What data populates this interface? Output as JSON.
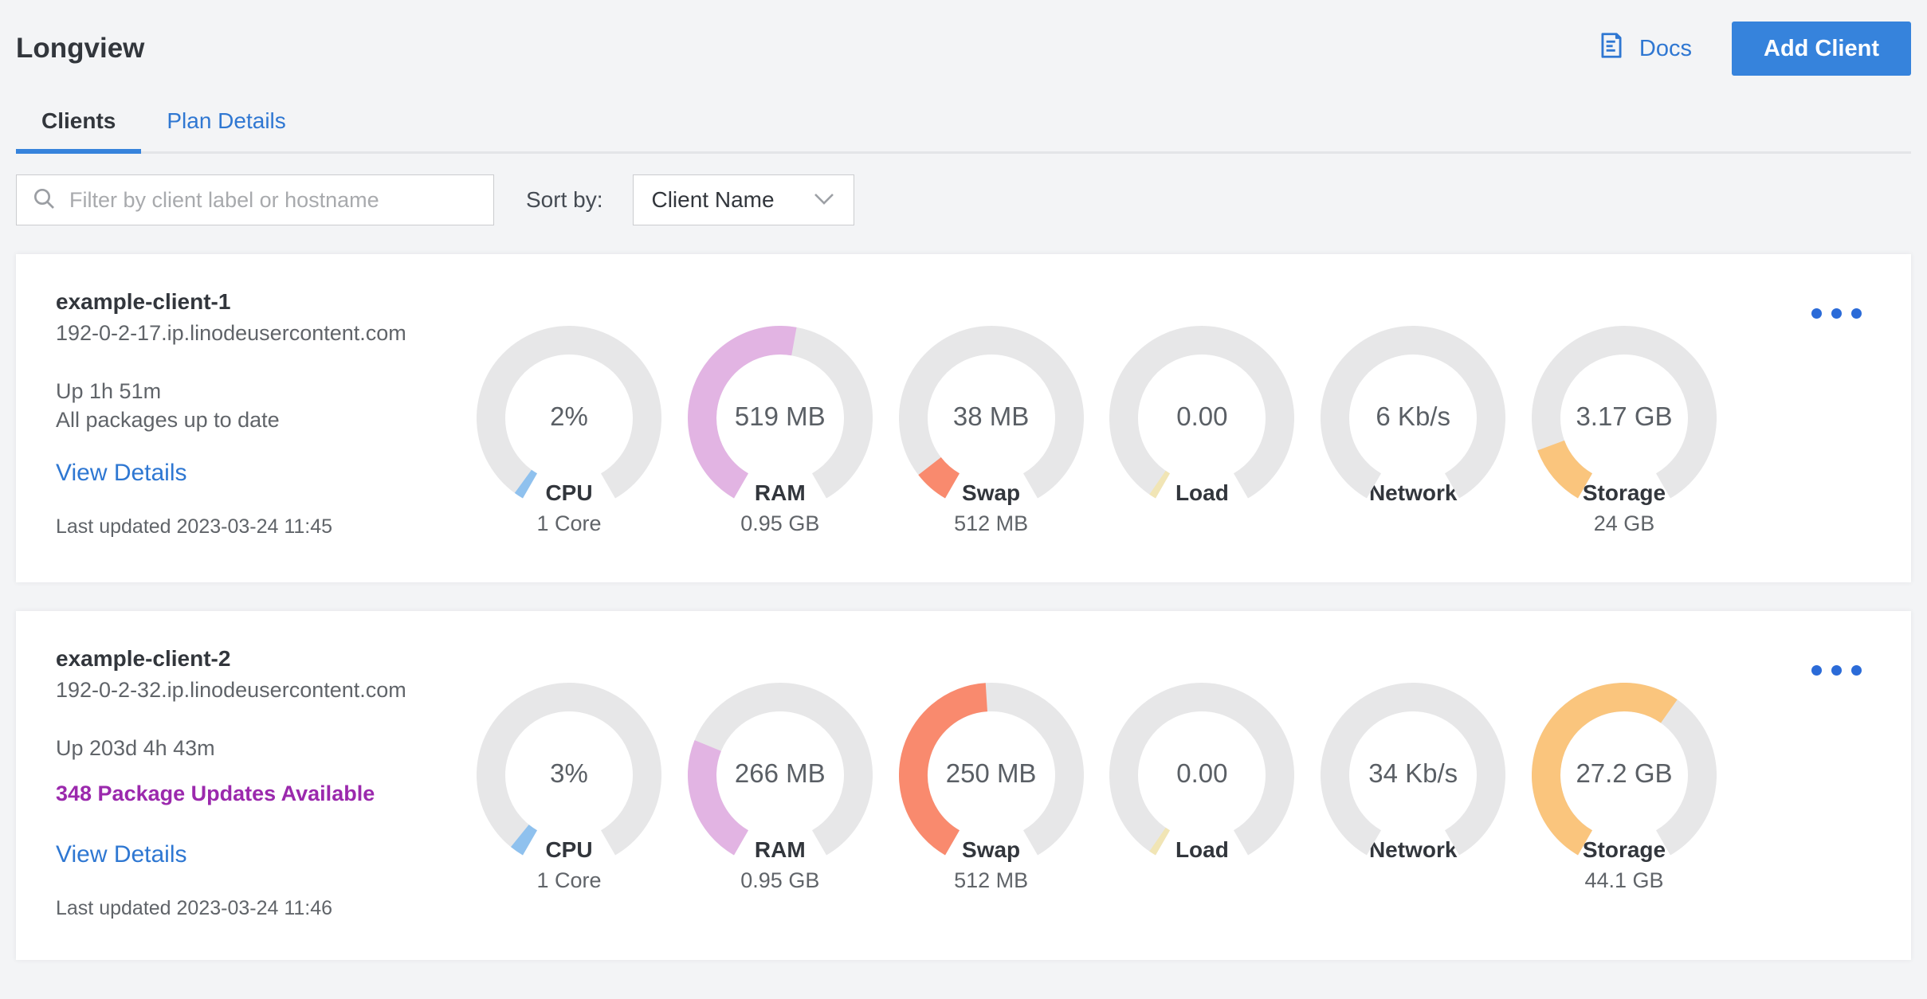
{
  "page": {
    "title": "Longview",
    "background": "#f3f4f6"
  },
  "header": {
    "docs_label": "Docs",
    "add_client_label": "Add Client",
    "accent_color": "#3683dc",
    "link_color": "#2f77d2"
  },
  "tabs": [
    {
      "label": "Clients",
      "active": true
    },
    {
      "label": "Plan Details",
      "active": false
    }
  ],
  "filter": {
    "placeholder": "Filter by client label or hostname",
    "sort_label": "Sort by:",
    "sort_value": "Client Name"
  },
  "icons": {
    "docs": "document-lines-icon",
    "search": "magnifier-icon",
    "sort": "chevron-down-icon",
    "card_menu": "ellipsis-horizontal-icon"
  },
  "gauge_style": {
    "track_color": "#e7e7e8",
    "arc_span_degrees": 300
  },
  "clients": [
    {
      "name": "example-client-1",
      "hostname": "192-0-2-17.ip.linodeusercontent.com",
      "uptime": "Up 1h 51m",
      "packages": "All packages up to date",
      "packages_updates_pending": false,
      "view_details_label": "View Details",
      "last_updated": "Last updated 2023-03-24 11:45",
      "gauges": [
        {
          "metric": "CPU",
          "value": "2%",
          "sub": "1 Core",
          "percent": 2,
          "color": "#8fc1ee"
        },
        {
          "metric": "RAM",
          "value": "519 MB",
          "sub": "0.95 GB",
          "percent": 53.4,
          "color": "#e2b4e3"
        },
        {
          "metric": "Swap",
          "value": "38 MB",
          "sub": "512 MB",
          "percent": 7.4,
          "color": "#f98a6e"
        },
        {
          "metric": "Load",
          "value": "0.00",
          "sub": "",
          "percent": 1.5,
          "color": "#f1e5b5"
        },
        {
          "metric": "Network",
          "value": "6 Kb/s",
          "sub": "",
          "percent": 0,
          "color": "#8fc1ee"
        },
        {
          "metric": "Storage",
          "value": "3.17 GB",
          "sub": "24 GB",
          "percent": 13.2,
          "color": "#fac57d"
        }
      ]
    },
    {
      "name": "example-client-2",
      "hostname": "192-0-2-32.ip.linodeusercontent.com",
      "uptime": "Up 203d 4h 43m",
      "packages": "348 Package Updates Available",
      "packages_updates_pending": true,
      "view_details_label": "View Details",
      "last_updated": "Last updated 2023-03-24 11:46",
      "gauges": [
        {
          "metric": "CPU",
          "value": "3%",
          "sub": "1 Core",
          "percent": 3,
          "color": "#8fc1ee"
        },
        {
          "metric": "RAM",
          "value": "266 MB",
          "sub": "0.95 GB",
          "percent": 27.4,
          "color": "#e2b4e3"
        },
        {
          "metric": "Swap",
          "value": "250 MB",
          "sub": "512 MB",
          "percent": 48.8,
          "color": "#f98a6e"
        },
        {
          "metric": "Load",
          "value": "0.00",
          "sub": "",
          "percent": 1.5,
          "color": "#f1e5b5"
        },
        {
          "metric": "Network",
          "value": "34 Kb/s",
          "sub": "",
          "percent": 0,
          "color": "#8fc1ee"
        },
        {
          "metric": "Storage",
          "value": "27.2 GB",
          "sub": "44.1 GB",
          "percent": 61.7,
          "color": "#fac57d"
        }
      ]
    }
  ]
}
